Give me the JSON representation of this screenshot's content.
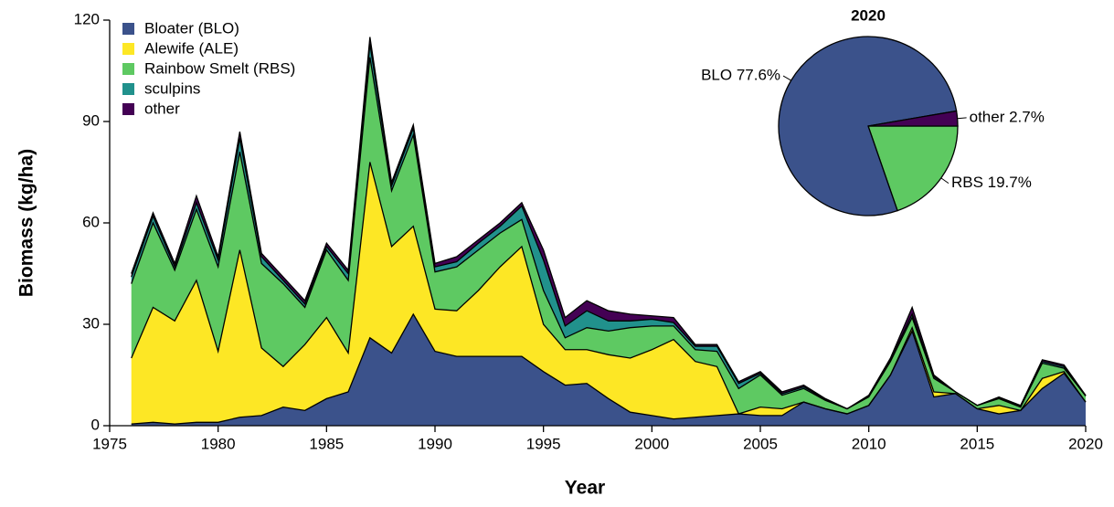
{
  "chart_data": [
    {
      "type": "area",
      "stacked": true,
      "x_label": "Year",
      "y_label": "Biomass (kg/ha)",
      "x": [
        1976,
        1977,
        1978,
        1979,
        1980,
        1981,
        1982,
        1983,
        1984,
        1985,
        1986,
        1987,
        1988,
        1989,
        1990,
        1991,
        1992,
        1993,
        1994,
        1995,
        1996,
        1997,
        1998,
        1999,
        2000,
        2001,
        2002,
        2003,
        2004,
        2005,
        2006,
        2007,
        2008,
        2009,
        2010,
        2011,
        2012,
        2013,
        2014,
        2015,
        2016,
        2017,
        2018,
        2019,
        2020
      ],
      "series": [
        {
          "name": "Bloater (BLO)",
          "color": "#3b528b",
          "values": [
            0.5,
            1,
            0.5,
            1,
            1,
            2.5,
            3,
            5.5,
            4.5,
            8,
            10,
            26,
            21.5,
            33,
            22,
            20.5,
            20.5,
            20.5,
            20.5,
            16,
            12,
            12.5,
            8,
            4,
            3,
            2,
            2.5,
            3,
            3.5,
            3,
            3,
            7,
            5,
            3.5,
            6,
            15,
            28,
            8.5,
            9.5,
            5,
            3.5,
            4.5,
            11,
            15.5,
            7
          ]
        },
        {
          "name": "Alewife (ALE)",
          "color": "#fde725",
          "values": [
            19.5,
            34,
            30.5,
            42,
            21,
            49.5,
            20,
            12,
            19.5,
            24,
            11.5,
            52,
            31.5,
            26,
            12.5,
            13.5,
            19.5,
            26.5,
            32.5,
            14,
            10.5,
            10,
            13,
            16,
            19.5,
            23.5,
            16.5,
            14.5,
            0,
            2.5,
            2,
            0,
            0,
            0,
            0,
            0,
            1,
            1.5,
            0,
            0,
            2.5,
            0,
            3,
            0.5,
            0
          ]
        },
        {
          "name": "Rainbow Smelt (RBS)",
          "color": "#5ec962",
          "values": [
            22,
            25,
            15,
            21,
            25,
            29,
            25,
            24.5,
            11,
            20,
            21.5,
            31,
            16.5,
            27,
            11,
            13,
            12,
            10,
            8,
            10,
            3.5,
            6.5,
            7,
            9,
            7,
            4,
            3.5,
            4.5,
            7.5,
            9.5,
            4,
            4,
            2.5,
            1.5,
            2.5,
            4,
            3,
            4,
            0.5,
            1,
            2,
            1,
            4.5,
            1,
            1.8
          ]
        },
        {
          "name": "sculpins",
          "color": "#21918c",
          "values": [
            2,
            2,
            1,
            2,
            2,
            4,
            2,
            1,
            1,
            1,
            2,
            4,
            1.5,
            2,
            1.5,
            1.5,
            2,
            2,
            4,
            9,
            3.5,
            5,
            3,
            2,
            2,
            1,
            1,
            1.5,
            1.5,
            0.5,
            0.5,
            0.5,
            0.3,
            0,
            0.3,
            0.5,
            1,
            0.5,
            0,
            0,
            0.3,
            0.3,
            0.5,
            0.5,
            0
          ]
        },
        {
          "name": "other",
          "color": "#440154",
          "values": [
            1,
            1,
            1,
            2,
            1,
            2,
            1,
            1,
            1,
            1,
            1,
            2,
            1,
            1,
            1,
            1.5,
            1,
            1,
            1,
            3,
            2.5,
            3,
            3,
            2,
            1,
            1.5,
            0.5,
            0.5,
            0.5,
            0.5,
            0.5,
            0.5,
            0.2,
            0,
            0.2,
            0.5,
            2,
            0.5,
            0,
            0,
            0.2,
            0.2,
            0.5,
            0.5,
            0.2
          ]
        }
      ],
      "xlim": [
        1975,
        2020
      ],
      "xticks": [
        1975,
        1980,
        1985,
        1990,
        1995,
        2000,
        2005,
        2010,
        2015,
        2020
      ],
      "ylim": [
        0,
        120
      ],
      "yticks": [
        0,
        30,
        60,
        90,
        120
      ],
      "legend": "upper left"
    },
    {
      "type": "pie",
      "title": "2020",
      "values": [
        19.7,
        77.6,
        2.7
      ],
      "value_labels": [
        "RBS 19.7%",
        "BLO 77.6%",
        "other 2.7%"
      ],
      "colors": [
        "#5ec962",
        "#3b528b",
        "#440154"
      ]
    }
  ]
}
